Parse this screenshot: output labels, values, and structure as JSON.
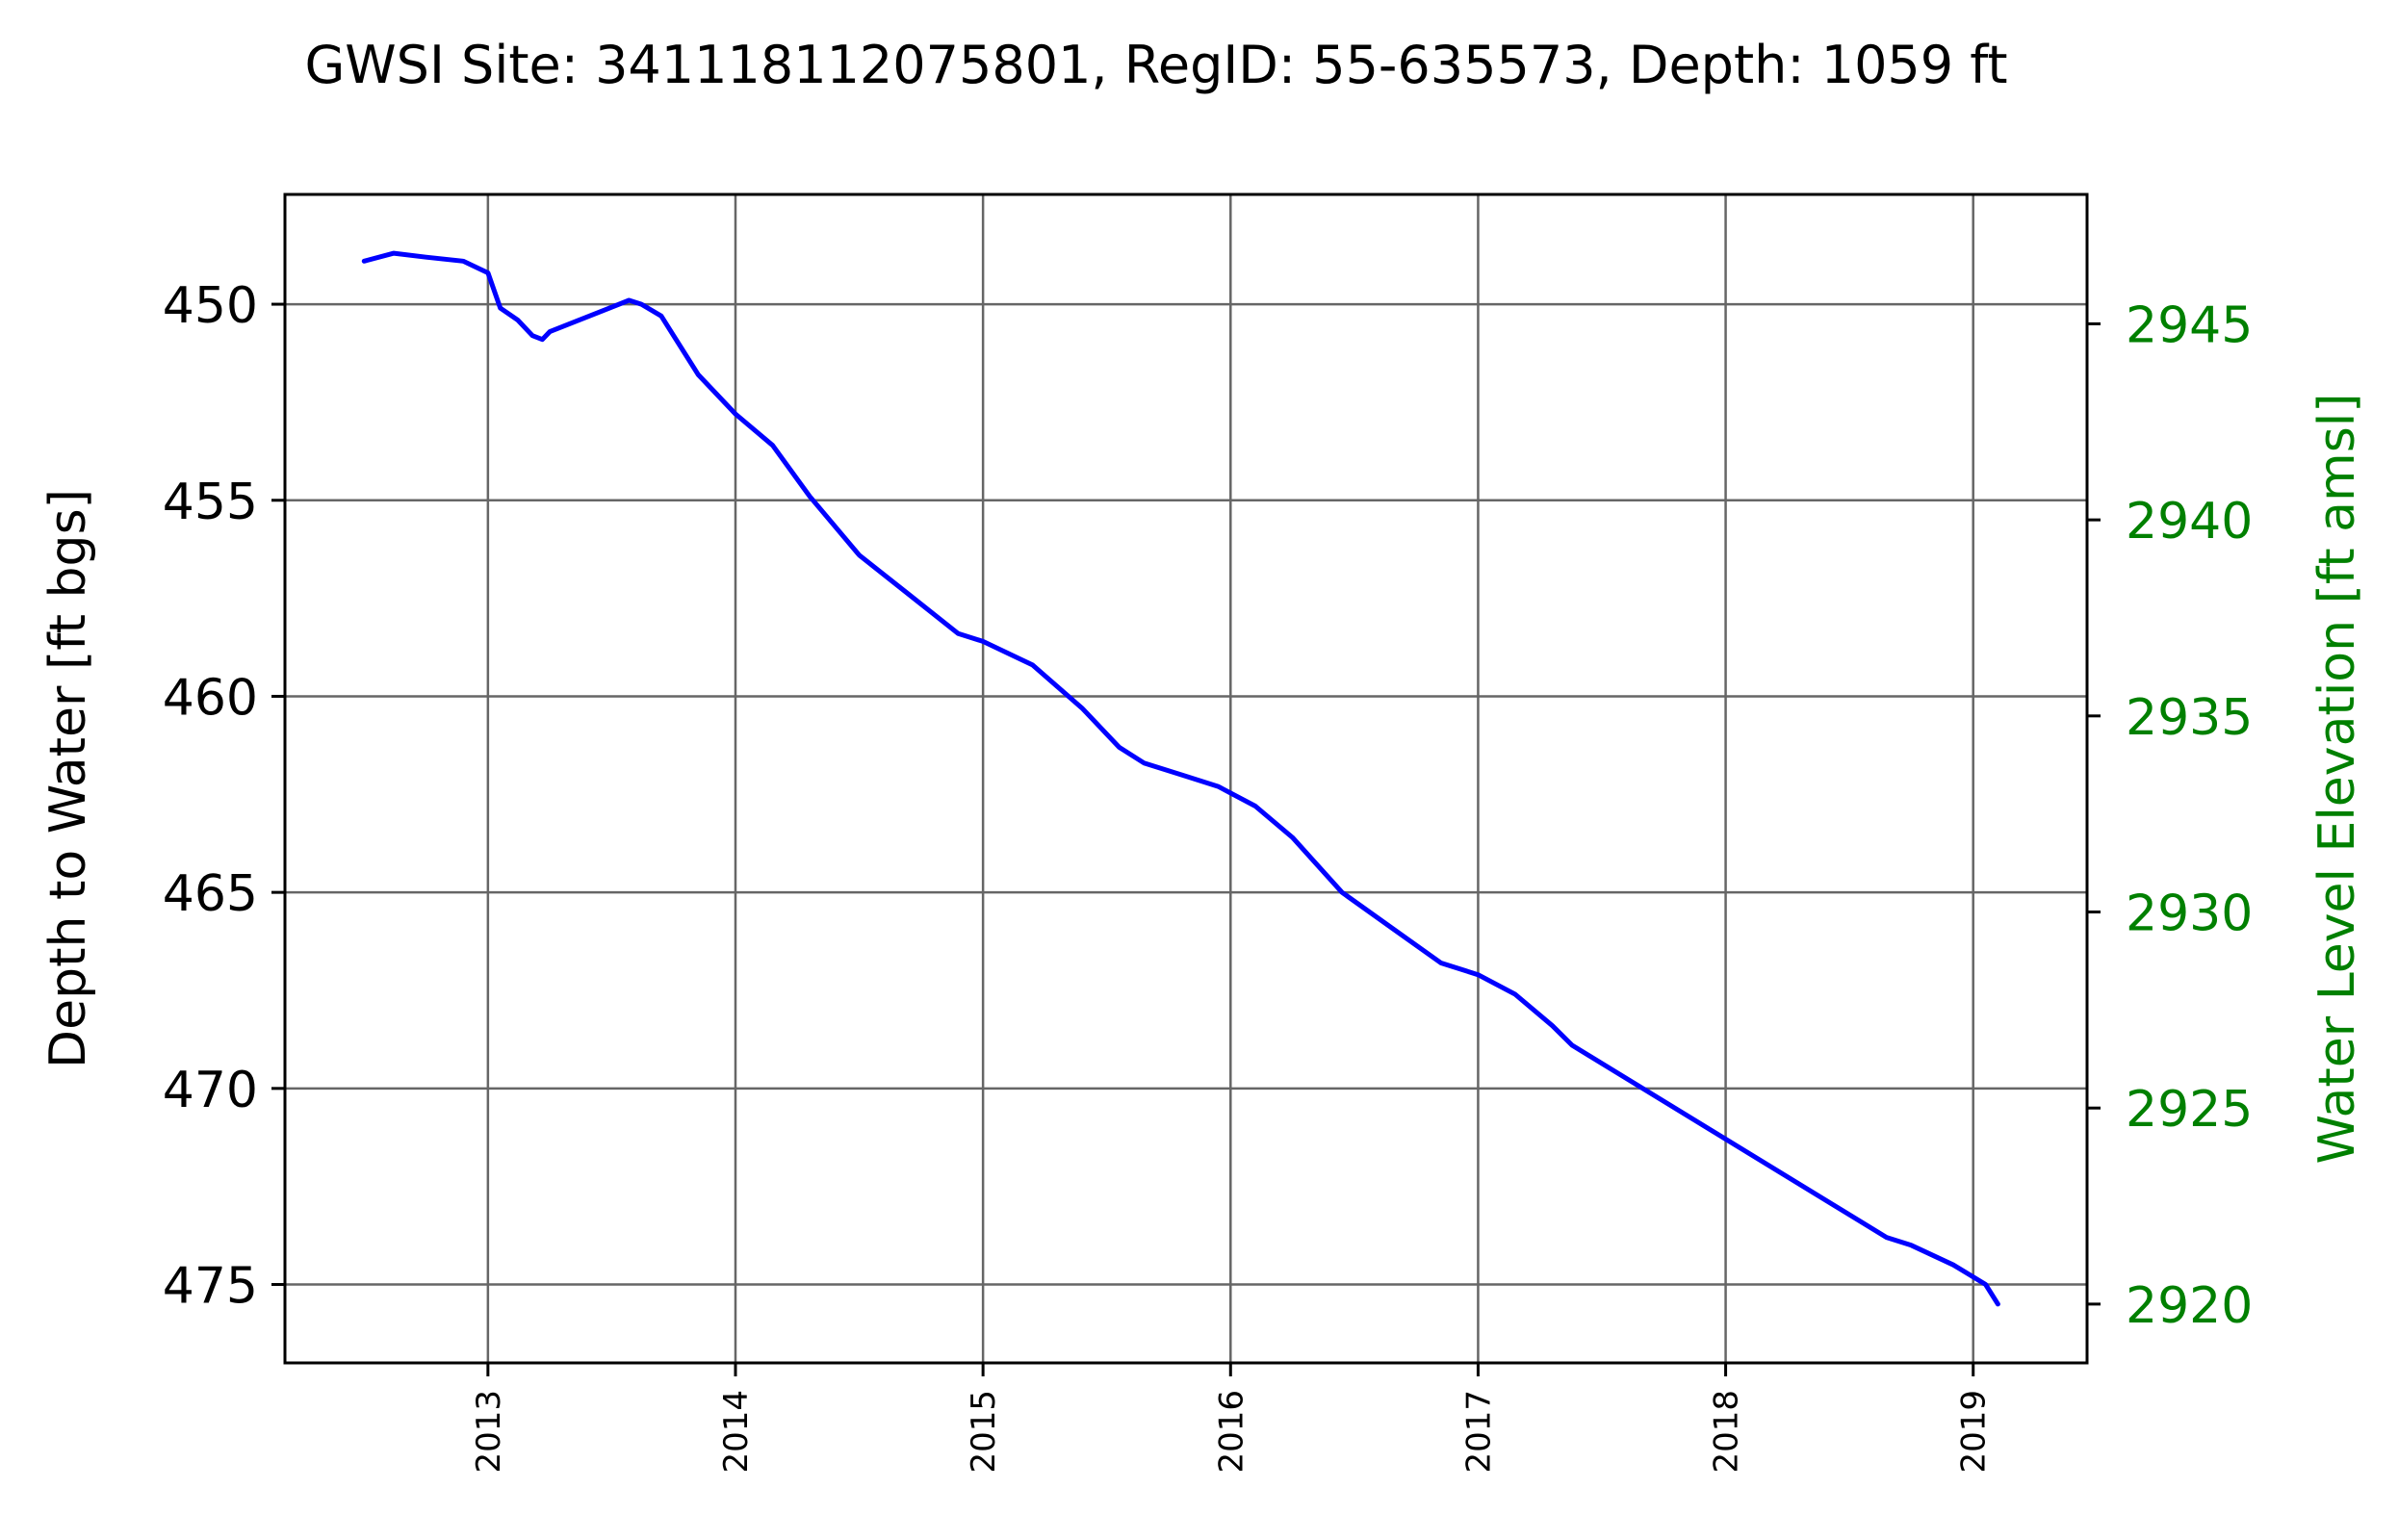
{
  "chart_data": {
    "type": "line",
    "title": "GWSI Site: 341118112075801, RegID: 55-635573, Depth: 1059 ft",
    "ylabel": "Depth to Water [ft bgs]",
    "y2label": "Water Level Elevation [ft amsl]",
    "xlim": [
      2012.18,
      2019.46
    ],
    "ylim": [
      477.0,
      447.2
    ],
    "y2lim": [
      2918.5,
      2948.3
    ],
    "x_ticks": [
      2013,
      2014,
      2015,
      2016,
      2017,
      2018,
      2019
    ],
    "y_ticks": [
      450,
      455,
      460,
      465,
      470,
      475
    ],
    "y2_ticks": [
      2945,
      2940,
      2935,
      2930,
      2925,
      2920
    ],
    "grid": true,
    "colors": {
      "series": "#0000ff",
      "secondary_axis": "#008000",
      "grid": "#666666"
    },
    "series": [
      {
        "x": [
          2012.5,
          2012.62,
          2012.75,
          2012.9,
          2013.0,
          2013.05,
          2013.12,
          2013.18,
          2013.22,
          2013.25,
          2013.57,
          2013.62,
          2013.7,
          2013.75,
          2013.85,
          2014.0,
          2014.15,
          2014.3,
          2014.5,
          2014.7,
          2014.9,
          2015.0,
          2015.2,
          2015.4,
          2015.55,
          2015.65,
          2015.8,
          2015.95,
          2016.1,
          2016.25,
          2016.45,
          2016.65,
          2016.85,
          2017.0,
          2017.15,
          2017.3,
          2017.38,
          2018.65,
          2018.75,
          2018.92,
          2019.05,
          2019.1
        ],
        "y": [
          448.9,
          448.7,
          448.8,
          448.9,
          449.2,
          450.1,
          450.4,
          450.8,
          450.9,
          450.7,
          449.9,
          450.0,
          450.3,
          450.8,
          451.8,
          452.8,
          453.6,
          454.9,
          456.4,
          457.4,
          458.4,
          458.6,
          459.2,
          460.3,
          461.3,
          461.7,
          462.0,
          462.3,
          462.8,
          463.6,
          465.0,
          465.9,
          466.8,
          467.1,
          467.6,
          468.4,
          468.9,
          473.8,
          474.0,
          474.5,
          475.0,
          475.5
        ]
      }
    ]
  }
}
